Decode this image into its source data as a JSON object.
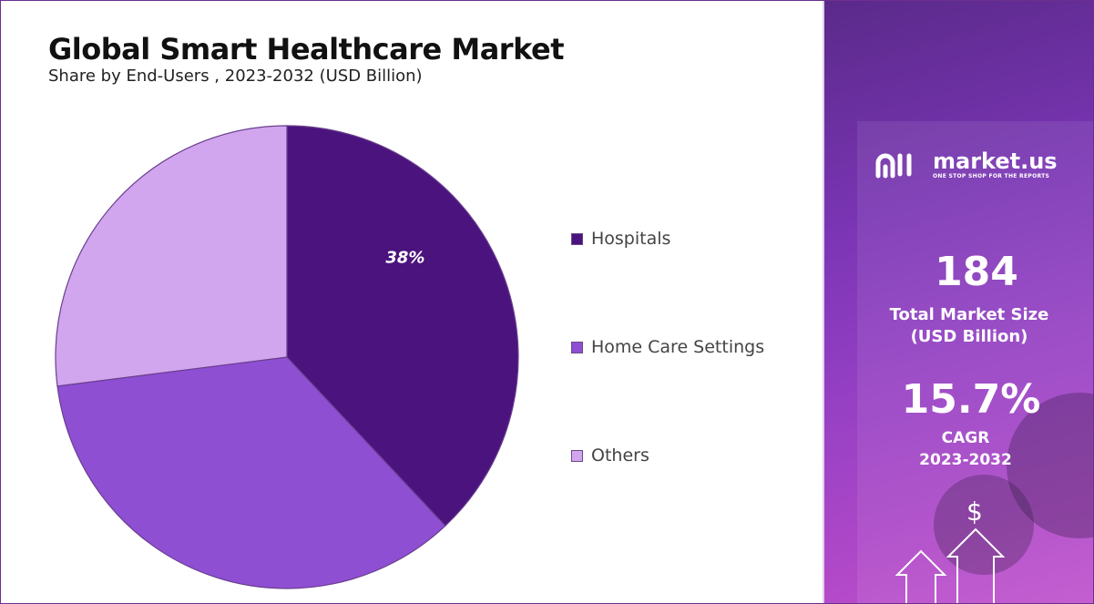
{
  "header": {
    "title": "Global Smart Healthcare Market",
    "subtitle": "Share by End-Users , 2023-2032 (USD Billion)"
  },
  "chart_data": {
    "type": "pie",
    "title": "Global Smart Healthcare Market",
    "subtitle": "Share by End-Users , 2023-2032 (USD Billion)",
    "categories": [
      "Hospitals",
      "Home Care Settings",
      "Others"
    ],
    "values": [
      38,
      35,
      27
    ],
    "data_labels": [
      "38%",
      "",
      ""
    ],
    "colors": [
      "#4b137d",
      "#8e4fd3",
      "#d2a6ee"
    ],
    "legend_position": "right"
  },
  "sidebar": {
    "brand_name": "market.us",
    "brand_tagline": "ONE STOP SHOP FOR THE REPORTS",
    "market_size_value": "184",
    "market_size_label_line1": "Total Market Size",
    "market_size_label_line2": "(USD Billion)",
    "cagr_value": "15.7%",
    "cagr_label_line1": "CAGR",
    "cagr_label_line2": "2023-2032",
    "dollar_symbol": "$",
    "icons": [
      "market-us-logo-icon",
      "dollar-icon",
      "up-arrow-icon"
    ]
  }
}
